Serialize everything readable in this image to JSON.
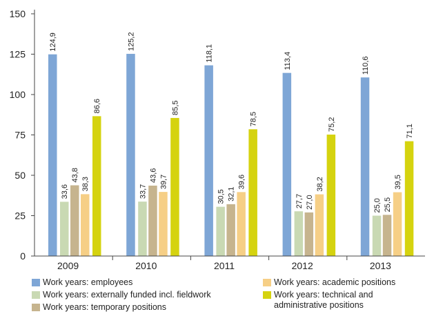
{
  "chart_data": {
    "type": "bar",
    "categories": [
      "2009",
      "2010",
      "2011",
      "2012",
      "2013"
    ],
    "ylim": [
      0,
      150
    ],
    "yticks": [
      0,
      25,
      50,
      75,
      100,
      125,
      150
    ],
    "value_labels": {
      "Work years: employees": [
        "124,9",
        "125,2",
        "118,1",
        "113,4",
        "110,6"
      ],
      "Work years: externally funded incl. fieldwork": [
        "33,6",
        "33,7",
        "30,5",
        "27,7",
        "25,0"
      ],
      "Work years: temporary positions": [
        "43,8",
        "43,6",
        "32,1",
        "27,0",
        "25,5"
      ],
      "Work years: academic positions": [
        "38,3",
        "39,7",
        "39,6",
        "38,2",
        "39,5"
      ],
      "Work years: technical and administrative positions": [
        "86,6",
        "85,5",
        "78,5",
        "75,2",
        "71,1"
      ]
    },
    "series": [
      {
        "name": "Work years: employees",
        "color": "#7ea6d6",
        "values": [
          124.9,
          125.2,
          118.1,
          113.4,
          110.6
        ]
      },
      {
        "name": "Work years: externally funded incl. fieldwork",
        "color": "#c9d9b3",
        "values": [
          33.6,
          33.7,
          30.5,
          27.7,
          25.0
        ]
      },
      {
        "name": "Work years: temporary positions",
        "color": "#c6b48e",
        "values": [
          43.8,
          43.6,
          32.1,
          27.0,
          25.5
        ]
      },
      {
        "name": "Work years: academic positions",
        "color": "#f6cf86",
        "values": [
          38.3,
          39.7,
          39.6,
          38.2,
          39.5
        ]
      },
      {
        "name": "Work years: technical and administrative positions",
        "color": "#d5d30f",
        "values": [
          86.6,
          85.5,
          78.5,
          75.2,
          71.1
        ]
      }
    ],
    "legend": {
      "items": [
        {
          "label": "Work years: employees",
          "color": "#7ea6d6"
        },
        {
          "label": "Work years: externally funded incl. fieldwork",
          "color": "#c9d9b3"
        },
        {
          "label": "Work years: temporary positions",
          "color": "#c6b48e"
        },
        {
          "label": "Work years: academic positions",
          "color": "#f6cf86"
        },
        {
          "label": "Work years: technical and administrative positions",
          "color": "#d5d30f"
        }
      ]
    }
  }
}
